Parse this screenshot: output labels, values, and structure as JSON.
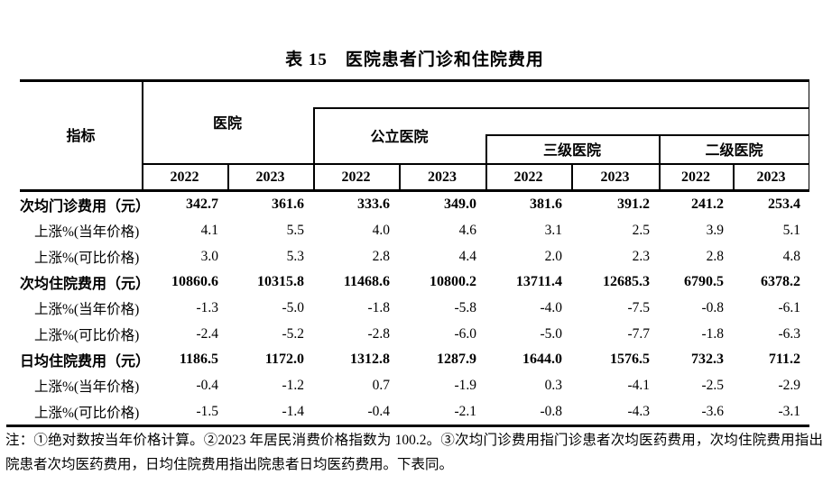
{
  "title": "表 15　医院患者门诊和住院费用",
  "table": {
    "corner_label": "指标",
    "groups": [
      {
        "label": "医院"
      },
      {
        "label": "公立医院"
      },
      {
        "label": "三级医院"
      },
      {
        "label": "二级医院"
      }
    ],
    "year_headers": [
      "2022",
      "2023",
      "2022",
      "2023",
      "2022",
      "2023",
      "2022",
      "2023"
    ],
    "rows": [
      {
        "label": "次均门诊费用（元）",
        "bold": true,
        "indent": false,
        "values": [
          "342.7",
          "361.6",
          "333.6",
          "349.0",
          "381.6",
          "391.2",
          "241.2",
          "253.4"
        ]
      },
      {
        "label": "上涨%(当年价格)",
        "bold": false,
        "indent": true,
        "values": [
          "4.1",
          "5.5",
          "4.0",
          "4.6",
          "3.1",
          "2.5",
          "3.9",
          "5.1"
        ]
      },
      {
        "label": "上涨%(可比价格)",
        "bold": false,
        "indent": true,
        "values": [
          "3.0",
          "5.3",
          "2.8",
          "4.4",
          "2.0",
          "2.3",
          "2.8",
          "4.8"
        ]
      },
      {
        "label": "次均住院费用（元）",
        "bold": true,
        "indent": false,
        "values": [
          "10860.6",
          "10315.8",
          "11468.6",
          "10800.2",
          "13711.4",
          "12685.3",
          "6790.5",
          "6378.2"
        ]
      },
      {
        "label": "上涨%(当年价格)",
        "bold": false,
        "indent": true,
        "values": [
          "-1.3",
          "-5.0",
          "-1.8",
          "-5.8",
          "-4.0",
          "-7.5",
          "-0.8",
          "-6.1"
        ]
      },
      {
        "label": "上涨%(可比价格)",
        "bold": false,
        "indent": true,
        "values": [
          "-2.4",
          "-5.2",
          "-2.8",
          "-6.0",
          "-5.0",
          "-7.7",
          "-1.8",
          "-6.3"
        ]
      },
      {
        "label": "日均住院费用（元）",
        "bold": true,
        "indent": false,
        "values": [
          "1186.5",
          "1172.0",
          "1312.8",
          "1287.9",
          "1644.0",
          "1576.5",
          "732.3",
          "711.2"
        ]
      },
      {
        "label": "上涨%(当年价格)",
        "bold": false,
        "indent": true,
        "values": [
          "-0.4",
          "-1.2",
          "0.7",
          "-1.9",
          "0.3",
          "-4.1",
          "-2.5",
          "-2.9"
        ]
      },
      {
        "label": "上涨%(可比价格)",
        "bold": false,
        "indent": true,
        "values": [
          "-1.5",
          "-1.4",
          "-0.4",
          "-2.1",
          "-0.8",
          "-4.3",
          "-3.6",
          "-3.1"
        ]
      }
    ]
  },
  "note": "注：①绝对数按当年价格计算。②2023 年居民消费价格指数为 100.2。③次均门诊费用指门诊患者次均医药费用，次均住院费用指出院患者次均医药费用，日均住院费用指出院患者日均医药费用。下表同。",
  "colors": {
    "text": "#000000",
    "background": "#ffffff",
    "line": "#000000"
  }
}
